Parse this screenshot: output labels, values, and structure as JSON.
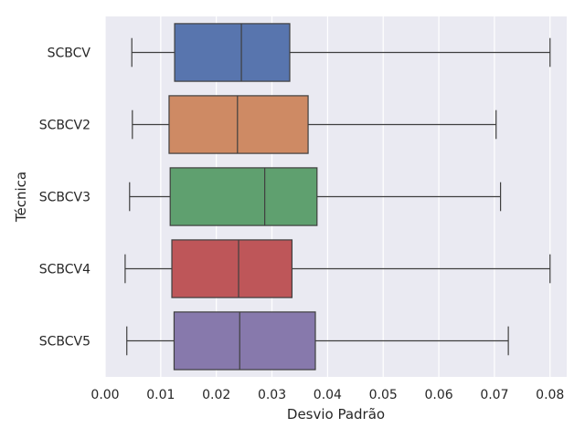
{
  "chart_data": {
    "type": "boxplot",
    "orientation": "horizontal",
    "xlabel": "Desvio Padrão",
    "ylabel": "Técnica",
    "xlim": [
      0.0,
      0.083
    ],
    "xticks": [
      "0.00",
      "0.01",
      "0.02",
      "0.03",
      "0.04",
      "0.05",
      "0.06",
      "0.07",
      "0.08"
    ],
    "grid": true,
    "background": "#EAEAF2",
    "categories": [
      "SCBCV",
      "SCBCV2",
      "SCBCV3",
      "SCBCV4",
      "SCBCV5"
    ],
    "boxes": [
      {
        "name": "SCBCV",
        "color": "#5875AE",
        "whislo": 0.0048,
        "q1": 0.0125,
        "med": 0.0245,
        "q3": 0.0332,
        "whishi": 0.08
      },
      {
        "name": "SCBCV2",
        "color": "#CE8A64",
        "whislo": 0.0049,
        "q1": 0.0115,
        "med": 0.0238,
        "q3": 0.0365,
        "whishi": 0.0703
      },
      {
        "name": "SCBCV3",
        "color": "#5FA06F",
        "whislo": 0.0044,
        "q1": 0.0117,
        "med": 0.0287,
        "q3": 0.0381,
        "whishi": 0.0711
      },
      {
        "name": "SCBCV4",
        "color": "#BE5659",
        "whislo": 0.0036,
        "q1": 0.012,
        "med": 0.024,
        "q3": 0.0336,
        "whishi": 0.08
      },
      {
        "name": "SCBCV5",
        "color": "#8779AC",
        "whislo": 0.0039,
        "q1": 0.0124,
        "med": 0.0242,
        "q3": 0.0378,
        "whishi": 0.0725
      }
    ]
  }
}
